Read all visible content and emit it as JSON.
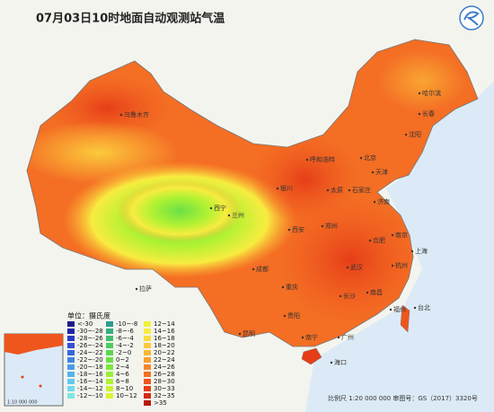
{
  "title": "07月03日10时地面自动观测站气温",
  "legend": {
    "title": "单位：摄氏度",
    "items": [
      {
        "label": "<-30",
        "color": "#1c1a8a"
      },
      {
        "label": "-30~-28",
        "color": "#2224a8"
      },
      {
        "label": "-28~-26",
        "color": "#2a38c4"
      },
      {
        "label": "-26~-24",
        "color": "#3150d4"
      },
      {
        "label": "-24~-22",
        "color": "#3868de"
      },
      {
        "label": "-22~-20",
        "color": "#4282e6"
      },
      {
        "label": "-20~-18",
        "color": "#4c9aec"
      },
      {
        "label": "-18~-16",
        "color": "#56b2f0"
      },
      {
        "label": "-16~-14",
        "color": "#62c8f2"
      },
      {
        "label": "-14~-12",
        "color": "#70daee"
      },
      {
        "label": "-12~-10",
        "color": "#7ee6e2"
      },
      {
        "label": "-10~-8",
        "color": "#2e9c8c"
      },
      {
        "label": "-8~-6",
        "color": "#36ae7e"
      },
      {
        "label": "-6~-4",
        "color": "#40be70"
      },
      {
        "label": "-4~-2",
        "color": "#4ccc60"
      },
      {
        "label": "-2~0",
        "color": "#5ad852"
      },
      {
        "label": "0~2",
        "color": "#6ce046"
      },
      {
        "label": "2~4",
        "color": "#80e83c"
      },
      {
        "label": "4~6",
        "color": "#98ee36"
      },
      {
        "label": "6~8",
        "color": "#b0f232"
      },
      {
        "label": "8~10",
        "color": "#c8f430"
      },
      {
        "label": "10~12",
        "color": "#dcf434"
      },
      {
        "label": "12~14",
        "color": "#eef23a"
      },
      {
        "label": "14~16",
        "color": "#f8ec40"
      },
      {
        "label": "16~18",
        "color": "#fbdc40"
      },
      {
        "label": "18~20",
        "color": "#fcca3c"
      },
      {
        "label": "20~22",
        "color": "#fcb636"
      },
      {
        "label": "22~24",
        "color": "#fa9e30"
      },
      {
        "label": "24~26",
        "color": "#f8862a"
      },
      {
        "label": "26~28",
        "color": "#f46e24"
      },
      {
        "label": "28~30",
        "color": "#ee561e"
      },
      {
        "label": "30~33",
        "color": "#e63e18"
      },
      {
        "label": "32~35",
        "color": "#d42a12"
      },
      {
        "label": ">35",
        "color": "#b8160c"
      }
    ]
  },
  "cities": [
    "乌鲁木齐",
    "哈尔滨",
    "长春",
    "沈阳",
    "呼和浩特",
    "北京",
    "天津",
    "银川",
    "太原",
    "石家庄",
    "济南",
    "西宁",
    "兰州",
    "郑州",
    "西安",
    "合肥",
    "南京",
    "上海",
    "拉萨",
    "成都",
    "武汉",
    "杭州",
    "重庆",
    "长沙",
    "南昌",
    "福州",
    "贵阳",
    "台北",
    "昆明",
    "南宁",
    "广州",
    "海口"
  ],
  "inset_scale": "1:10 000 000",
  "footer": "比例尺 1:20 000 000   审图号：GS（2017）3320号"
}
